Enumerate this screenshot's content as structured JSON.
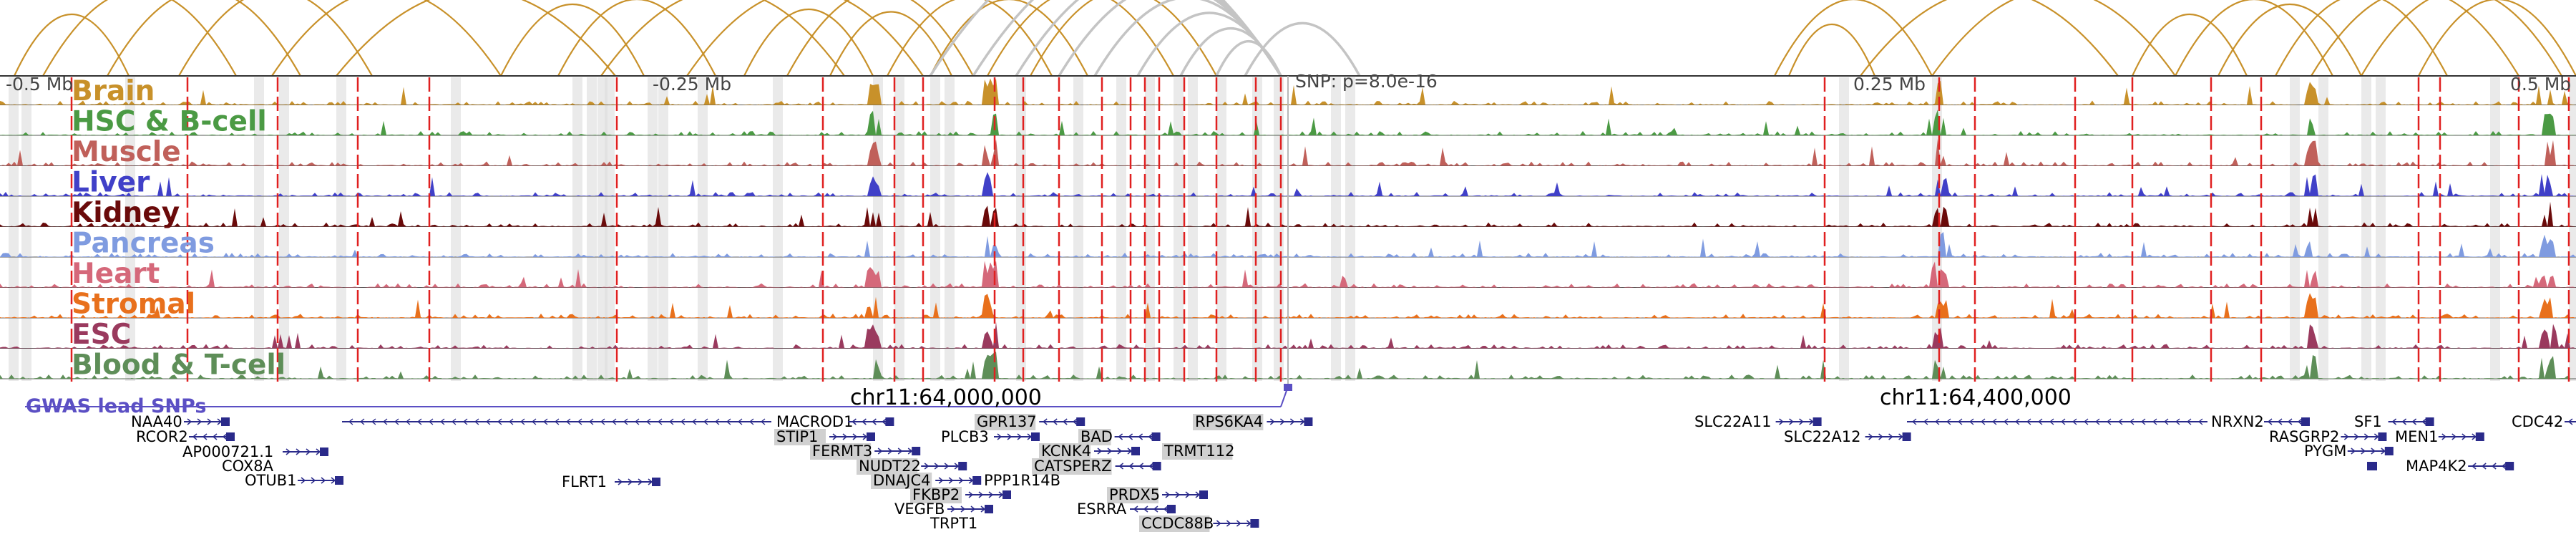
{
  "axis": {
    "left_label": "-0.5 Mb",
    "mid_left_label": "-0.25 Mb",
    "snp_label": "SNP: p=8.0e-16",
    "mid_right_label": "0.25 Mb",
    "right_label": "0.5 Mb"
  },
  "tracks": [
    {
      "name": "Brain",
      "color": "#c8912a"
    },
    {
      "name": "HSC & B-cell",
      "color": "#4b9a44"
    },
    {
      "name": "Muscle",
      "color": "#c0605a"
    },
    {
      "name": "Liver",
      "color": "#4040c8"
    },
    {
      "name": "Kidney",
      "color": "#6a0a0a"
    },
    {
      "name": "Pancreas",
      "color": "#7f9be0"
    },
    {
      "name": "Heart",
      "color": "#d5687a"
    },
    {
      "name": "Stromal",
      "color": "#e8701c"
    },
    {
      "name": "ESC",
      "color": "#9a3a5e"
    },
    {
      "name": "Blood & T-cell",
      "color": "#5e8e58"
    }
  ],
  "gwas_label": "GWAS lead SNPs",
  "loci": [
    "chr11:64,000,000",
    "chr11:64,400,000"
  ],
  "genes": [
    {
      "name": "NAA40",
      "hl": false
    },
    {
      "name": "RCOR2",
      "hl": false
    },
    {
      "name": "AP000721.1",
      "hl": false
    },
    {
      "name": "COX8A",
      "hl": false
    },
    {
      "name": "OTUB1",
      "hl": false
    },
    {
      "name": "FLRT1",
      "hl": false
    },
    {
      "name": "MACROD1",
      "hl": false
    },
    {
      "name": "STIP1",
      "hl": true
    },
    {
      "name": "FERMT3",
      "hl": true
    },
    {
      "name": "NUDT22",
      "hl": true
    },
    {
      "name": "DNAJC4",
      "hl": true
    },
    {
      "name": "FKBP2",
      "hl": true
    },
    {
      "name": "VEGFB",
      "hl": false
    },
    {
      "name": "TRPT1",
      "hl": false
    },
    {
      "name": "GPR137",
      "hl": true
    },
    {
      "name": "PLCB3",
      "hl": false
    },
    {
      "name": "BAD",
      "hl": true
    },
    {
      "name": "KCNK4",
      "hl": true
    },
    {
      "name": "CATSPERZ",
      "hl": true
    },
    {
      "name": "PPP1R14B",
      "hl": false
    },
    {
      "name": "PRDX5",
      "hl": true
    },
    {
      "name": "ESRRA",
      "hl": false
    },
    {
      "name": "CCDC88B",
      "hl": true
    },
    {
      "name": "RPS6KA4",
      "hl": true
    },
    {
      "name": "TRMT112",
      "hl": true
    },
    {
      "name": "SLC22A11",
      "hl": false
    },
    {
      "name": "SLC22A12",
      "hl": false
    },
    {
      "name": "NRXN2",
      "hl": false
    },
    {
      "name": "RASGRP2",
      "hl": false
    },
    {
      "name": "PYGM",
      "hl": false
    },
    {
      "name": "SF1",
      "hl": false
    },
    {
      "name": "MEN1",
      "hl": false
    },
    {
      "name": "MAP4K2",
      "hl": false
    },
    {
      "name": "CDC42",
      "hl": false
    }
  ],
  "colors": {
    "arc": "#c8912a",
    "arc_gray": "#c4c4c4",
    "snp_line": "#e02020",
    "gwas": "#5b4fc4",
    "gene": "#2a2a8a"
  }
}
